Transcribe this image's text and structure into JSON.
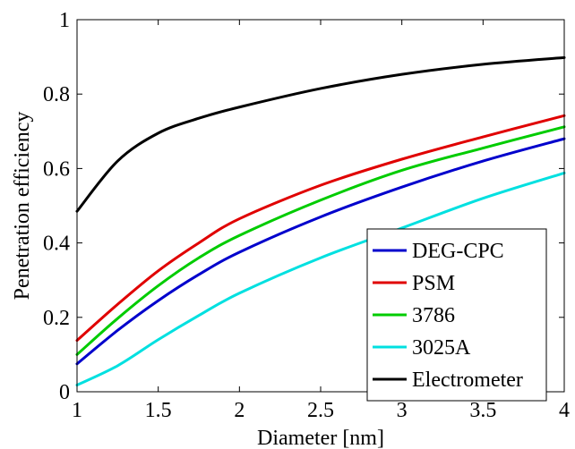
{
  "chart_data": {
    "type": "line",
    "xlabel": "Diameter [nm]",
    "ylabel": "Penetration efficiency",
    "xlim": [
      1,
      4
    ],
    "ylim": [
      0,
      1
    ],
    "xticks": [
      "1",
      "1.5",
      "2",
      "2.5",
      "3",
      "3.5",
      "4"
    ],
    "yticks": [
      "0",
      "0.2",
      "0.4",
      "0.6",
      "0.8",
      "1"
    ],
    "grid": false,
    "legend_position": "bottom-right",
    "x": [
      1.0,
      1.25,
      1.5,
      1.75,
      2.0,
      2.5,
      3.0,
      3.5,
      4.0
    ],
    "series": [
      {
        "name": "DEG-CPC",
        "color": "#0000cc",
        "values": [
          0.075,
          0.165,
          0.245,
          0.315,
          0.375,
          0.47,
          0.55,
          0.62,
          0.68
        ]
      },
      {
        "name": "PSM",
        "color": "#e00000",
        "values": [
          0.138,
          0.235,
          0.325,
          0.4,
          0.465,
          0.555,
          0.625,
          0.685,
          0.742
        ]
      },
      {
        "name": "3786",
        "color": "#00cc00",
        "values": [
          0.1,
          0.197,
          0.285,
          0.36,
          0.42,
          0.515,
          0.595,
          0.655,
          0.712
        ]
      },
      {
        "name": "3025A",
        "color": "#00e0e0",
        "values": [
          0.018,
          0.07,
          0.14,
          0.205,
          0.265,
          0.36,
          0.44,
          0.52,
          0.588
        ]
      },
      {
        "name": "Electrometer",
        "color": "#000000",
        "values": [
          0.485,
          0.62,
          0.695,
          0.735,
          0.765,
          0.815,
          0.853,
          0.88,
          0.898
        ]
      }
    ]
  }
}
